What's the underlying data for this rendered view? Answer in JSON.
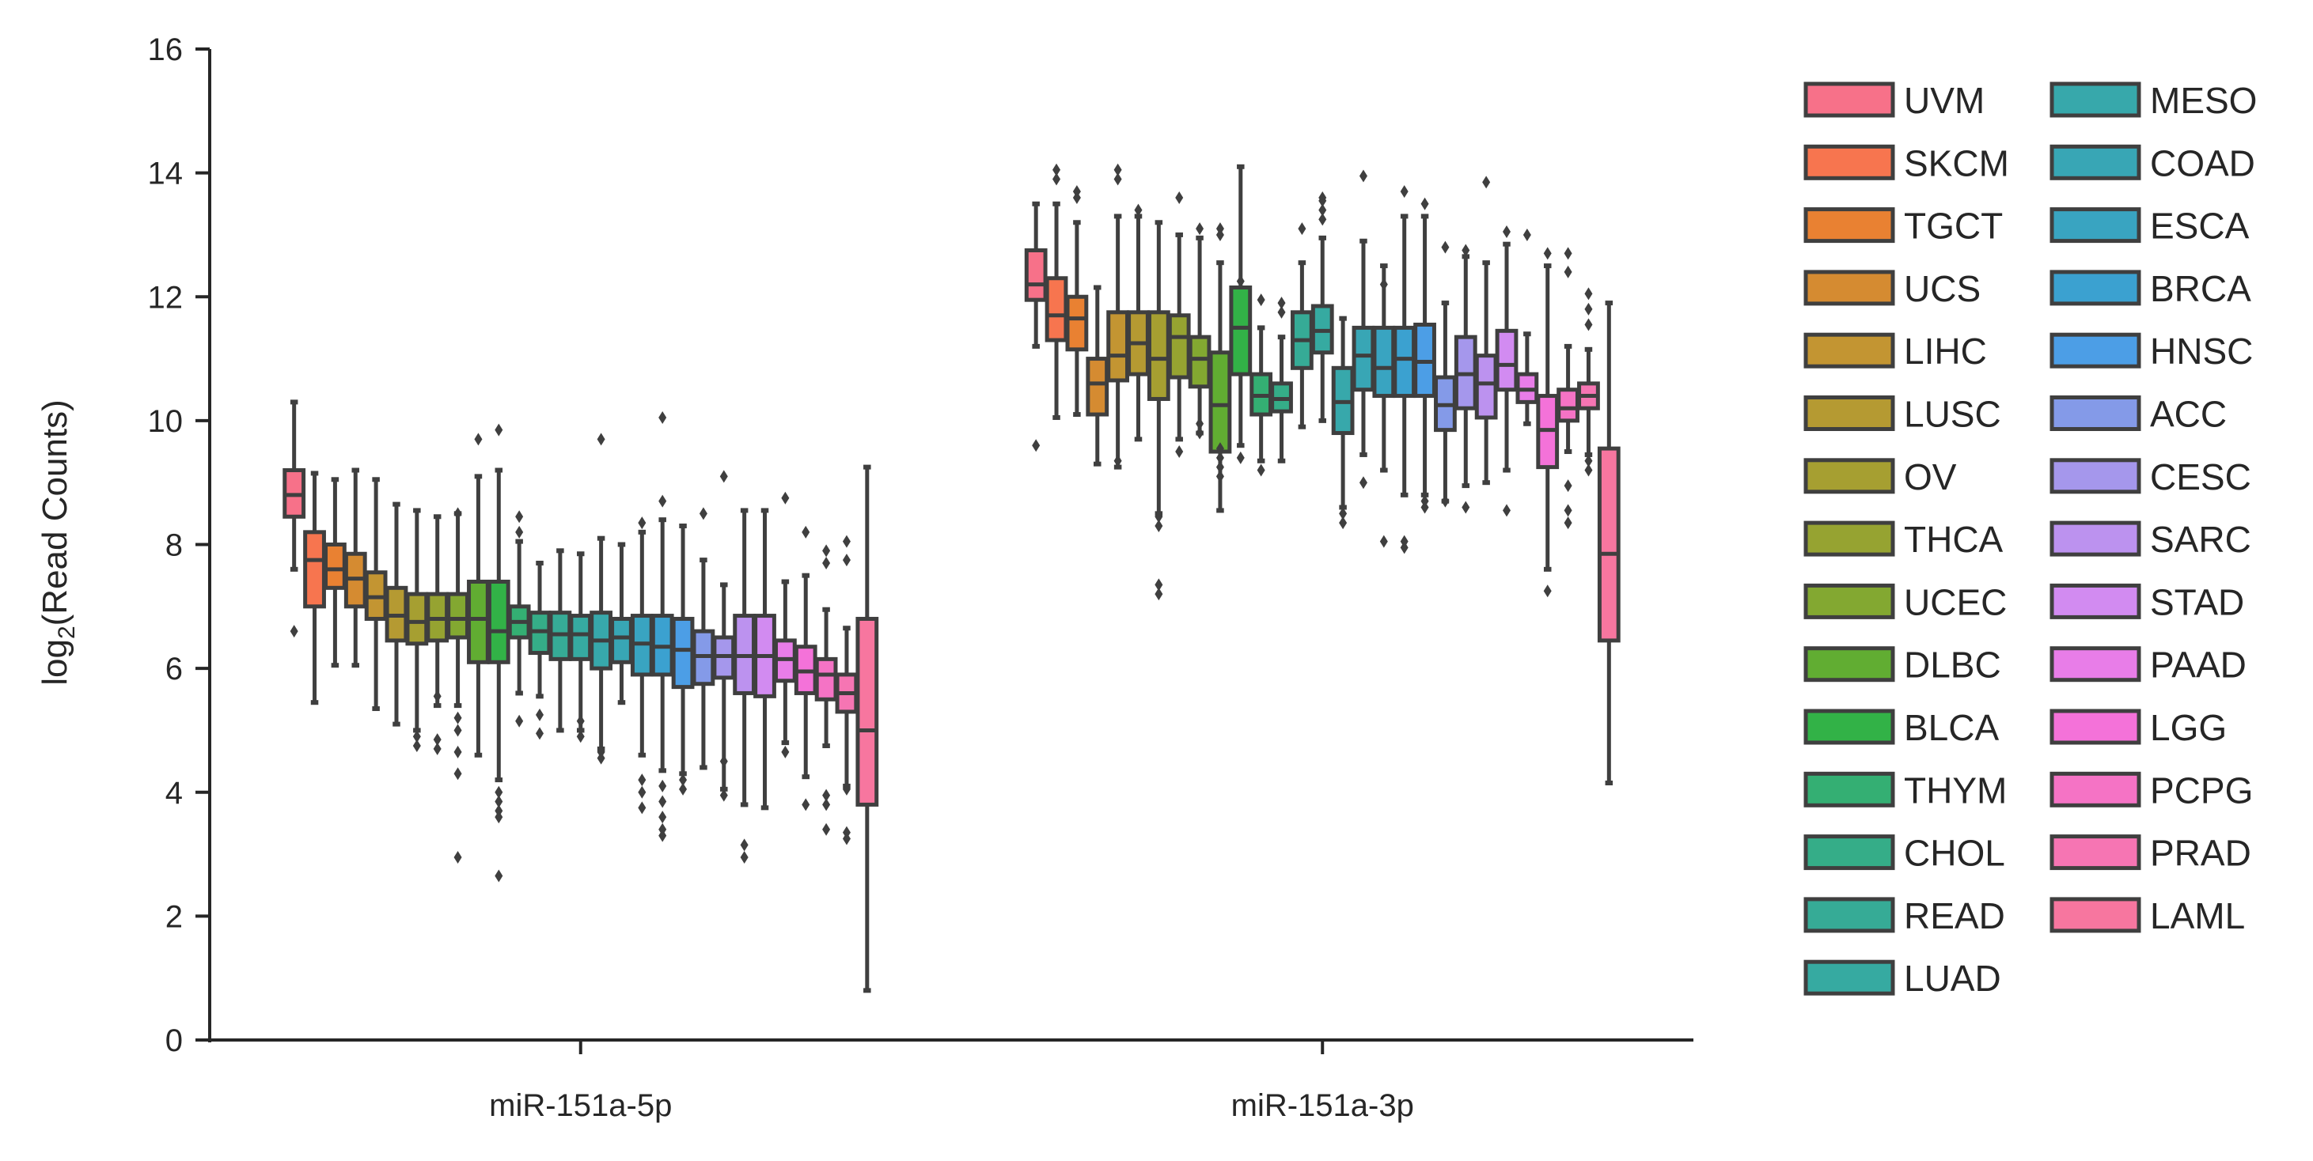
{
  "chart_data": {
    "type": "box",
    "title": "",
    "xlabel": "",
    "ylabel": "log2(Read Counts)",
    "ylabel_parts": {
      "main": "log",
      "subscript": "2",
      "rest": "(Read Counts)"
    },
    "ylim": [
      0,
      16
    ],
    "yticks": [
      0,
      2,
      4,
      6,
      8,
      10,
      12,
      14,
      16
    ],
    "grid": false,
    "legend_position": "right",
    "categories": [
      "miR-151a-5p",
      "miR-151a-3p"
    ],
    "series": [
      {
        "name": "UVM",
        "color": "#f77189",
        "boxes": [
          [
            7.6,
            8.45,
            8.8,
            9.2,
            10.3
          ],
          [
            11.2,
            11.95,
            12.2,
            12.75,
            13.5
          ]
        ]
      },
      {
        "name": "SKCM",
        "color": "#f7754f",
        "boxes": [
          [
            5.45,
            7.0,
            7.75,
            8.2,
            9.15
          ],
          [
            10.05,
            11.3,
            11.7,
            12.3,
            13.5
          ]
        ]
      },
      {
        "name": "TGCT",
        "color": "#e98132",
        "boxes": [
          [
            6.05,
            7.3,
            7.6,
            8.0,
            9.05
          ],
          [
            10.1,
            11.15,
            11.65,
            12.0,
            13.2
          ]
        ]
      },
      {
        "name": "UCS",
        "color": "#d58b31",
        "boxes": [
          [
            6.05,
            7.0,
            7.45,
            7.85,
            9.2
          ],
          [
            9.3,
            10.1,
            10.6,
            11.0,
            12.15
          ]
        ]
      },
      {
        "name": "LIHC",
        "color": "#c39532",
        "boxes": [
          [
            5.35,
            6.8,
            7.15,
            7.55,
            9.05
          ],
          [
            9.25,
            10.65,
            11.05,
            11.75,
            13.3
          ]
        ]
      },
      {
        "name": "LUSC",
        "color": "#b59a32",
        "boxes": [
          [
            5.1,
            6.45,
            6.85,
            7.3,
            8.65
          ],
          [
            9.7,
            10.75,
            11.25,
            11.75,
            13.3
          ]
        ]
      },
      {
        "name": "OV",
        "color": "#a69f31",
        "boxes": [
          [
            5.0,
            6.4,
            6.75,
            7.2,
            8.55
          ],
          [
            8.5,
            10.35,
            11.0,
            11.75,
            13.2
          ]
        ]
      },
      {
        "name": "THCA",
        "color": "#96a331",
        "boxes": [
          [
            5.4,
            6.45,
            6.8,
            7.2,
            8.45
          ],
          [
            9.7,
            10.7,
            11.35,
            11.7,
            13.0
          ]
        ]
      },
      {
        "name": "UCEC",
        "color": "#83a831",
        "boxes": [
          [
            5.4,
            6.5,
            6.8,
            7.2,
            8.5
          ],
          [
            9.8,
            10.55,
            11.0,
            11.35,
            12.95
          ]
        ]
      },
      {
        "name": "DLBC",
        "color": "#61ad32",
        "boxes": [
          [
            4.6,
            6.1,
            6.8,
            7.4,
            9.1
          ],
          [
            8.55,
            9.5,
            10.25,
            11.1,
            12.55
          ]
        ]
      },
      {
        "name": "BLCA",
        "color": "#32b247",
        "boxes": [
          [
            4.2,
            6.1,
            6.6,
            7.4,
            9.2
          ],
          [
            9.6,
            10.75,
            11.5,
            12.15,
            14.1
          ]
        ]
      },
      {
        "name": "THYM",
        "color": "#34af73",
        "boxes": [
          [
            5.6,
            6.5,
            6.75,
            7.0,
            8.05
          ],
          [
            9.35,
            10.1,
            10.4,
            10.75,
            11.5
          ]
        ]
      },
      {
        "name": "CHOL",
        "color": "#35ad88",
        "boxes": [
          [
            5.55,
            6.25,
            6.6,
            6.9,
            7.7
          ],
          [
            9.35,
            10.15,
            10.35,
            10.6,
            11.35
          ]
        ]
      },
      {
        "name": "READ",
        "color": "#36ab96",
        "boxes": [
          [
            5.0,
            6.15,
            6.55,
            6.9,
            7.9
          ],
          [
            9.9,
            10.85,
            11.3,
            11.75,
            12.55
          ]
        ]
      },
      {
        "name": "LUAD",
        "color": "#36aaa1",
        "boxes": [
          [
            5.0,
            6.15,
            6.55,
            6.85,
            7.85
          ],
          [
            10.0,
            11.1,
            11.45,
            11.85,
            12.95
          ]
        ]
      },
      {
        "name": "MESO",
        "color": "#37a8ab",
        "boxes": [
          [
            4.7,
            6.0,
            6.45,
            6.9,
            8.1
          ],
          [
            8.6,
            9.8,
            10.3,
            10.85,
            11.65
          ]
        ]
      },
      {
        "name": "COAD",
        "color": "#38a6b5",
        "boxes": [
          [
            5.45,
            6.1,
            6.5,
            6.8,
            8.0
          ],
          [
            9.45,
            10.5,
            11.05,
            11.5,
            12.9
          ]
        ]
      },
      {
        "name": "ESCA",
        "color": "#39a4c1",
        "boxes": [
          [
            4.6,
            5.9,
            6.4,
            6.85,
            8.2
          ],
          [
            9.2,
            10.4,
            10.85,
            11.5,
            12.5
          ]
        ]
      },
      {
        "name": "BRCA",
        "color": "#3ba1d0",
        "boxes": [
          [
            4.35,
            5.9,
            6.35,
            6.85,
            8.4
          ],
          [
            8.8,
            10.4,
            11.0,
            11.5,
            13.3
          ]
        ]
      },
      {
        "name": "HNSC",
        "color": "#4c9ee6",
        "boxes": [
          [
            4.3,
            5.7,
            6.3,
            6.8,
            8.3
          ],
          [
            8.8,
            10.4,
            10.95,
            11.55,
            13.3
          ]
        ]
      },
      {
        "name": "ACC",
        "color": "#849ae8",
        "boxes": [
          [
            4.4,
            5.75,
            6.2,
            6.6,
            7.75
          ],
          [
            8.7,
            9.85,
            10.25,
            10.7,
            11.9
          ]
        ]
      },
      {
        "name": "CESC",
        "color": "#a597ec",
        "boxes": [
          [
            4.05,
            5.85,
            6.2,
            6.5,
            7.35
          ],
          [
            8.95,
            10.2,
            10.75,
            11.35,
            12.65
          ]
        ]
      },
      {
        "name": "SARC",
        "color": "#bc92ef",
        "boxes": [
          [
            3.8,
            5.6,
            6.2,
            6.85,
            8.55
          ],
          [
            9.0,
            10.05,
            10.6,
            11.05,
            12.55
          ]
        ]
      },
      {
        "name": "STAD",
        "color": "#d28bf1",
        "boxes": [
          [
            3.75,
            5.55,
            6.2,
            6.85,
            8.55
          ],
          [
            9.2,
            10.5,
            10.9,
            11.45,
            12.85
          ]
        ]
      },
      {
        "name": "PAAD",
        "color": "#e87de8",
        "boxes": [
          [
            4.8,
            5.8,
            6.15,
            6.45,
            7.4
          ],
          [
            9.95,
            10.3,
            10.5,
            10.75,
            11.4
          ]
        ]
      },
      {
        "name": "LGG",
        "color": "#f472d9",
        "boxes": [
          [
            4.25,
            5.6,
            5.95,
            6.35,
            7.5
          ],
          [
            7.6,
            9.25,
            9.85,
            10.4,
            12.5
          ]
        ]
      },
      {
        "name": "PCPG",
        "color": "#f573c5",
        "boxes": [
          [
            4.75,
            5.5,
            5.9,
            6.15,
            6.95
          ],
          [
            9.5,
            10.0,
            10.2,
            10.5,
            11.2
          ]
        ]
      },
      {
        "name": "PRAD",
        "color": "#f675b3",
        "boxes": [
          [
            4.1,
            5.3,
            5.6,
            5.9,
            6.65
          ],
          [
            9.45,
            10.2,
            10.4,
            10.6,
            11.15
          ]
        ]
      },
      {
        "name": "LAML",
        "color": "#f7769f",
        "boxes": [
          [
            0.8,
            3.8,
            5.0,
            6.8,
            9.25
          ],
          [
            4.15,
            6.45,
            7.85,
            9.55,
            11.9
          ]
        ]
      }
    ],
    "outliers": [
      [
        [
          [
            0,
            6.6
          ]
        ],
        [
          [
            1,
            9.6
          ]
        ]
      ],
      [
        [],
        [
          [
            1,
            14.05
          ],
          [
            1,
            13.9
          ]
        ]
      ],
      [
        [],
        [
          [
            1,
            13.7
          ],
          [
            1,
            13.6
          ]
        ]
      ],
      [
        [],
        []
      ],
      [
        [],
        [
          [
            1,
            14.05
          ],
          [
            1,
            13.9
          ],
          [
            1,
            9.35
          ]
        ]
      ],
      [
        [],
        [
          [
            1,
            13.4
          ]
        ]
      ],
      [
        [
          [
            0,
            4.9
          ],
          [
            0,
            4.75
          ]
        ],
        [
          [
            1,
            8.45
          ],
          [
            1,
            8.3
          ],
          [
            1,
            7.35
          ],
          [
            1,
            7.2
          ]
        ]
      ],
      [
        [
          [
            0,
            5.55
          ],
          [
            0,
            4.85
          ],
          [
            0,
            4.7
          ]
        ],
        [
          [
            1,
            13.6
          ],
          [
            1,
            9.5
          ]
        ]
      ],
      [
        [
          [
            0,
            8.5
          ],
          [
            0,
            5.2
          ],
          [
            0,
            5.0
          ],
          [
            0,
            4.65
          ],
          [
            0,
            4.3
          ],
          [
            0,
            2.95
          ]
        ],
        [
          [
            1,
            13.1
          ],
          [
            1,
            9.95
          ],
          [
            1,
            9.8
          ]
        ]
      ],
      [
        [
          [
            0,
            9.7
          ]
        ],
        [
          [
            1,
            13.1
          ],
          [
            1,
            13.0
          ],
          [
            1,
            9.55
          ],
          [
            1,
            9.4
          ],
          [
            1,
            9.25
          ],
          [
            1,
            9.1
          ]
        ]
      ],
      [
        [
          [
            0,
            9.85
          ],
          [
            0,
            4.0
          ],
          [
            0,
            3.85
          ],
          [
            0,
            3.7
          ],
          [
            0,
            3.6
          ],
          [
            0,
            2.65
          ]
        ],
        [
          [
            1,
            12.25
          ],
          [
            1,
            9.4
          ]
        ]
      ],
      [
        [
          [
            0,
            8.45
          ],
          [
            0,
            8.2
          ],
          [
            0,
            5.15
          ]
        ],
        [
          [
            1,
            11.95
          ],
          [
            1,
            9.2
          ]
        ]
      ],
      [
        [
          [
            0,
            5.25
          ],
          [
            0,
            4.95
          ]
        ],
        [
          [
            1,
            11.9
          ],
          [
            1,
            11.75
          ]
        ]
      ],
      [
        [],
        [
          [
            1,
            13.1
          ]
        ]
      ],
      [
        [
          [
            0,
            5.15
          ],
          [
            0,
            4.9
          ]
        ],
        [
          [
            1,
            13.6
          ],
          [
            1,
            13.55
          ],
          [
            1,
            13.4
          ],
          [
            1,
            13.25
          ]
        ]
      ],
      [
        [
          [
            0,
            9.7
          ],
          [
            0,
            4.65
          ],
          [
            0,
            4.55
          ]
        ],
        [
          [
            1,
            8.35
          ],
          [
            1,
            8.5
          ]
        ]
      ],
      [
        [],
        [
          [
            1,
            13.95
          ],
          [
            1,
            9.0
          ]
        ]
      ],
      [
        [
          [
            0,
            8.35
          ],
          [
            0,
            4.2
          ],
          [
            0,
            4.0
          ],
          [
            0,
            3.75
          ]
        ],
        [
          [
            1,
            12.2
          ],
          [
            1,
            8.05
          ]
        ]
      ],
      [
        [
          [
            0,
            10.05
          ],
          [
            0,
            8.7
          ],
          [
            0,
            4.1
          ],
          [
            0,
            3.85
          ],
          [
            0,
            3.6
          ],
          [
            0,
            3.4
          ],
          [
            0,
            3.3
          ]
        ],
        [
          [
            1,
            13.7
          ],
          [
            1,
            8.05
          ],
          [
            1,
            7.95
          ]
        ]
      ],
      [
        [
          [
            0,
            4.2
          ],
          [
            0,
            4.05
          ]
        ],
        [
          [
            1,
            13.5
          ],
          [
            1,
            8.7
          ],
          [
            1,
            8.6
          ]
        ]
      ],
      [
        [
          [
            0,
            8.5
          ]
        ],
        [
          [
            1,
            12.8
          ],
          [
            1,
            8.7
          ]
        ]
      ],
      [
        [
          [
            0,
            9.1
          ],
          [
            0,
            4.5
          ],
          [
            0,
            3.95
          ]
        ],
        [
          [
            1,
            12.75
          ],
          [
            1,
            8.6
          ]
        ]
      ],
      [
        [
          [
            0,
            3.15
          ],
          [
            0,
            2.95
          ]
        ],
        [
          [
            1,
            13.85
          ]
        ]
      ],
      [
        [],
        [
          [
            1,
            13.05
          ],
          [
            1,
            8.55
          ]
        ]
      ],
      [
        [
          [
            0,
            8.75
          ],
          [
            0,
            4.65
          ]
        ],
        [
          [
            1,
            13.0
          ]
        ]
      ],
      [
        [
          [
            0,
            8.2
          ],
          [
            0,
            3.8
          ]
        ],
        [
          [
            1,
            12.7
          ],
          [
            1,
            7.25
          ]
        ]
      ],
      [
        [
          [
            0,
            7.9
          ],
          [
            0,
            7.7
          ],
          [
            0,
            3.95
          ],
          [
            0,
            3.8
          ],
          [
            0,
            3.4
          ]
        ],
        [
          [
            1,
            12.7
          ],
          [
            1,
            12.4
          ],
          [
            1,
            8.95
          ],
          [
            1,
            8.55
          ],
          [
            1,
            8.35
          ]
        ]
      ],
      [
        [
          [
            0,
            8.05
          ],
          [
            0,
            7.75
          ],
          [
            0,
            4.05
          ],
          [
            0,
            3.35
          ],
          [
            0,
            3.25
          ]
        ],
        [
          [
            1,
            12.05
          ],
          [
            1,
            11.8
          ],
          [
            1,
            11.55
          ],
          [
            1,
            9.35
          ],
          [
            1,
            9.2
          ]
        ]
      ],
      [
        [],
        []
      ]
    ]
  }
}
